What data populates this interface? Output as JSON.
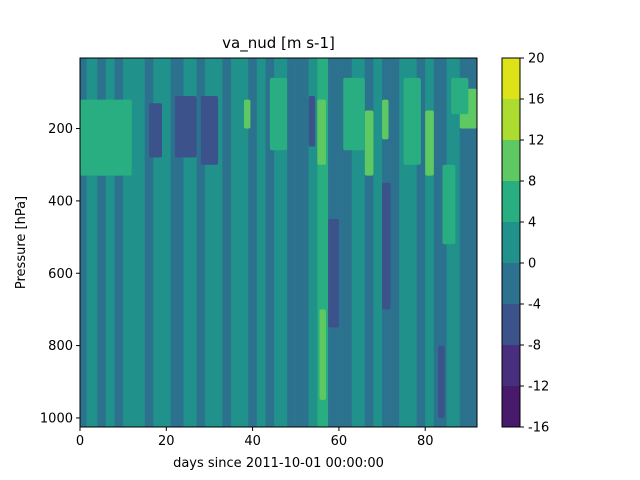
{
  "chart_data": {
    "type": "heatmap",
    "title": "va_nud [m s-1]",
    "xlabel": "days since 2011-10-01 00:00:00",
    "ylabel": "Pressure [hPa]",
    "xlim": [
      0,
      92
    ],
    "ylim": [
      1025,
      5
    ],
    "y_inverted": true,
    "x_ticks": [
      0,
      20,
      40,
      60,
      80
    ],
    "x_tick_labels": [
      "0",
      "20",
      "40",
      "60",
      "80"
    ],
    "y_ticks": [
      200,
      400,
      600,
      800,
      1000
    ],
    "y_tick_labels": [
      "200",
      "400",
      "600",
      "800",
      "1000"
    ],
    "colorbar": {
      "levels": [
        -16,
        -12,
        -8,
        -4,
        0,
        4,
        8,
        12,
        16,
        20
      ],
      "tick_labels": [
        "-16",
        "-12",
        "-8",
        "-4",
        "0",
        "4",
        "8",
        "12",
        "16",
        "20"
      ],
      "colors": [
        "#481a6c",
        "#472f7d",
        "#3b528b",
        "#2c728e",
        "#21918c",
        "#28ae80",
        "#5ec962",
        "#addc30",
        "#dde318"
      ]
    },
    "bands": [
      {
        "x0": 0,
        "x1": 1.5,
        "level": -4
      },
      {
        "x0": 1.5,
        "x1": 4,
        "level": 0
      },
      {
        "x0": 4,
        "x1": 6,
        "level": -4
      },
      {
        "x0": 6,
        "x1": 8,
        "level": 0
      },
      {
        "x0": 8,
        "x1": 10,
        "level": -4
      },
      {
        "x0": 10,
        "x1": 15,
        "level": 0
      },
      {
        "x0": 15,
        "x1": 17,
        "level": -4
      },
      {
        "x0": 17,
        "x1": 21,
        "level": 0
      },
      {
        "x0": 21,
        "x1": 24,
        "level": -4
      },
      {
        "x0": 24,
        "x1": 27,
        "level": 0
      },
      {
        "x0": 27,
        "x1": 29,
        "level": -4
      },
      {
        "x0": 29,
        "x1": 33,
        "level": 0
      },
      {
        "x0": 33,
        "x1": 35,
        "level": -4
      },
      {
        "x0": 35,
        "x1": 39,
        "level": 0
      },
      {
        "x0": 39,
        "x1": 41,
        "level": -4
      },
      {
        "x0": 41,
        "x1": 43,
        "level": 0
      },
      {
        "x0": 43,
        "x1": 45,
        "level": -4
      },
      {
        "x0": 45,
        "x1": 48,
        "level": 0
      },
      {
        "x0": 48,
        "x1": 50,
        "level": -4
      },
      {
        "x0": 50,
        "x1": 53,
        "level": -4
      },
      {
        "x0": 53,
        "x1": 55,
        "level": 0
      },
      {
        "x0": 55,
        "x1": 57.5,
        "level": 4
      },
      {
        "x0": 57.5,
        "x1": 60,
        "level": -4
      },
      {
        "x0": 60,
        "x1": 63,
        "level": -4
      },
      {
        "x0": 63,
        "x1": 66,
        "level": 0
      },
      {
        "x0": 66,
        "x1": 68,
        "level": -4
      },
      {
        "x0": 68,
        "x1": 70,
        "level": 0
      },
      {
        "x0": 70,
        "x1": 72,
        "level": -4
      },
      {
        "x0": 72,
        "x1": 74,
        "level": -4
      },
      {
        "x0": 74,
        "x1": 78,
        "level": 0
      },
      {
        "x0": 78,
        "x1": 80,
        "level": -4
      },
      {
        "x0": 80,
        "x1": 82,
        "level": 0
      },
      {
        "x0": 82,
        "x1": 85,
        "level": -4
      },
      {
        "x0": 85,
        "x1": 88,
        "level": 0
      },
      {
        "x0": 88,
        "x1": 92,
        "level": -4
      }
    ],
    "features": [
      {
        "x0": 22,
        "x1": 27,
        "p0": 110,
        "p1": 280,
        "level": -8
      },
      {
        "x0": 28,
        "x1": 32,
        "p0": 110,
        "p1": 300,
        "level": -8
      },
      {
        "x0": 16,
        "x1": 19,
        "p0": 130,
        "p1": 280,
        "level": -8
      },
      {
        "x0": 57.5,
        "x1": 60,
        "p0": 450,
        "p1": 750,
        "level": -8
      },
      {
        "x0": 53,
        "x1": 54.5,
        "p0": 110,
        "p1": 250,
        "level": -8
      },
      {
        "x0": 66,
        "x1": 68,
        "p0": 150,
        "p1": 330,
        "level": 8
      },
      {
        "x0": 70,
        "x1": 71.5,
        "p0": 120,
        "p1": 230,
        "level": 8
      },
      {
        "x0": 80,
        "x1": 82,
        "p0": 150,
        "p1": 330,
        "level": 8
      },
      {
        "x0": 88,
        "x1": 92,
        "p0": 90,
        "p1": 200,
        "level": 8
      },
      {
        "x0": 38,
        "x1": 39.5,
        "p0": 120,
        "p1": 200,
        "level": 8
      },
      {
        "x0": 55,
        "x1": 57,
        "p0": 120,
        "p1": 300,
        "level": 8
      },
      {
        "x0": 55.5,
        "x1": 57,
        "p0": 700,
        "p1": 950,
        "level": 8
      },
      {
        "x0": 86,
        "x1": 90,
        "p0": 60,
        "p1": 160,
        "level": 4
      },
      {
        "x0": 44,
        "x1": 48,
        "p0": 60,
        "p1": 260,
        "level": 4
      },
      {
        "x0": 61,
        "x1": 66,
        "p0": 60,
        "p1": 260,
        "level": 4
      },
      {
        "x0": 75,
        "x1": 79,
        "p0": 60,
        "p1": 300,
        "level": 4
      },
      {
        "x0": 0,
        "x1": 12,
        "p0": 120,
        "p1": 330,
        "level": 4
      },
      {
        "x0": 70,
        "x1": 72,
        "p0": 350,
        "p1": 700,
        "level": -8
      },
      {
        "x0": 83,
        "x1": 84.5,
        "p0": 800,
        "p1": 1000,
        "level": -8
      },
      {
        "x0": 84,
        "x1": 87,
        "p0": 300,
        "p1": 520,
        "level": 4
      }
    ]
  }
}
